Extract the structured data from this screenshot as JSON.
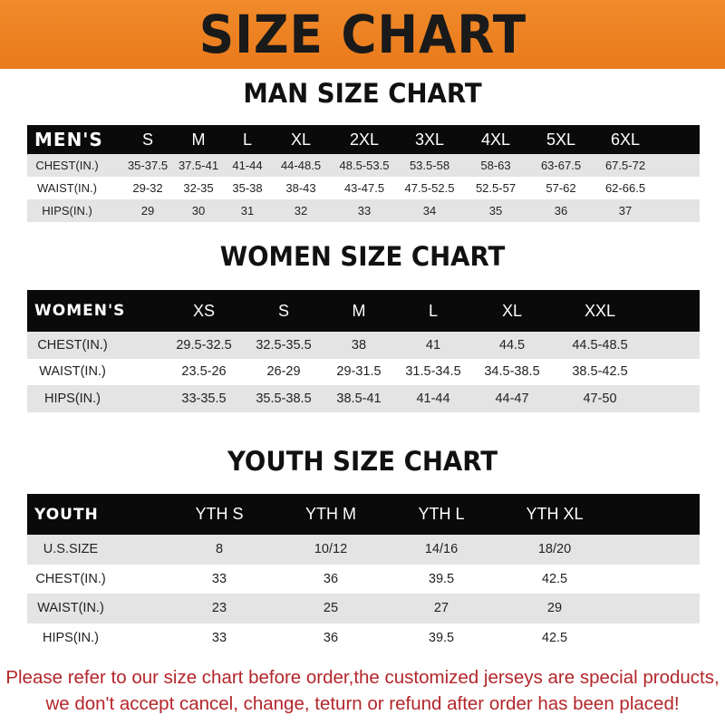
{
  "banner_title": "SIZE CHART",
  "men": {
    "title": "MAN SIZE CHART",
    "header_label": "MEN'S",
    "sizes": [
      "S",
      "M",
      "L",
      "XL",
      "2XL",
      "3XL",
      "4XL",
      "5XL",
      "6XL"
    ],
    "rows": [
      {
        "label": "CHEST(IN.)",
        "values": [
          "35-37.5",
          "37.5-41",
          "41-44",
          "44-48.5",
          "48.5-53.5",
          "53.5-58",
          "58-63",
          "63-67.5",
          "67.5-72"
        ]
      },
      {
        "label": "WAIST(IN.)",
        "values": [
          "29-32",
          "32-35",
          "35-38",
          "38-43",
          "43-47.5",
          "47.5-52.5",
          "52.5-57",
          "57-62",
          "62-66.5"
        ]
      },
      {
        "label": "HIPS(IN.)",
        "values": [
          "29",
          "30",
          "31",
          "32",
          "33",
          "34",
          "35",
          "36",
          "37"
        ]
      }
    ]
  },
  "women": {
    "title": "WOMEN SIZE CHART",
    "header_label": "WOMEN'S",
    "sizes": [
      "XS",
      "S",
      "M",
      "L",
      "XL",
      "XXL"
    ],
    "rows": [
      {
        "label": "CHEST(IN.)",
        "values": [
          "29.5-32.5",
          "32.5-35.5",
          "38",
          "41",
          "44.5",
          "44.5-48.5"
        ]
      },
      {
        "label": "WAIST(IN.)",
        "values": [
          "23.5-26",
          "26-29",
          "29-31.5",
          "31.5-34.5",
          "34.5-38.5",
          "38.5-42.5"
        ]
      },
      {
        "label": "HIPS(IN.)",
        "values": [
          "33-35.5",
          "35.5-38.5",
          "38.5-41",
          "41-44",
          "44-47",
          "47-50"
        ]
      }
    ]
  },
  "youth": {
    "title": "YOUTH SIZE CHART",
    "header_label": "YOUTH",
    "sizes": [
      "YTH S",
      "YTH M",
      "YTH L",
      "YTH XL"
    ],
    "rows": [
      {
        "label": "U.S.SIZE",
        "values": [
          "8",
          "10/12",
          "14/16",
          "18/20"
        ]
      },
      {
        "label": "CHEST(IN.)",
        "values": [
          "33",
          "36",
          "39.5",
          "42.5"
        ]
      },
      {
        "label": "WAIST(IN.)",
        "values": [
          "23",
          "25",
          "27",
          "29"
        ]
      },
      {
        "label": "HIPS(IN.)",
        "values": [
          "33",
          "36",
          "39.5",
          "42.5"
        ]
      }
    ]
  },
  "footer": {
    "line1": "Please refer to our size chart before order,the customized jerseys are special products,",
    "line2": "we don't accept cancel, change, teturn or refund after order has been placed!"
  },
  "colors": {
    "banner": "#ee8222",
    "header_row": "#0a0a0a",
    "stripe": "#e4e4e4",
    "notice": "#b3262a"
  }
}
